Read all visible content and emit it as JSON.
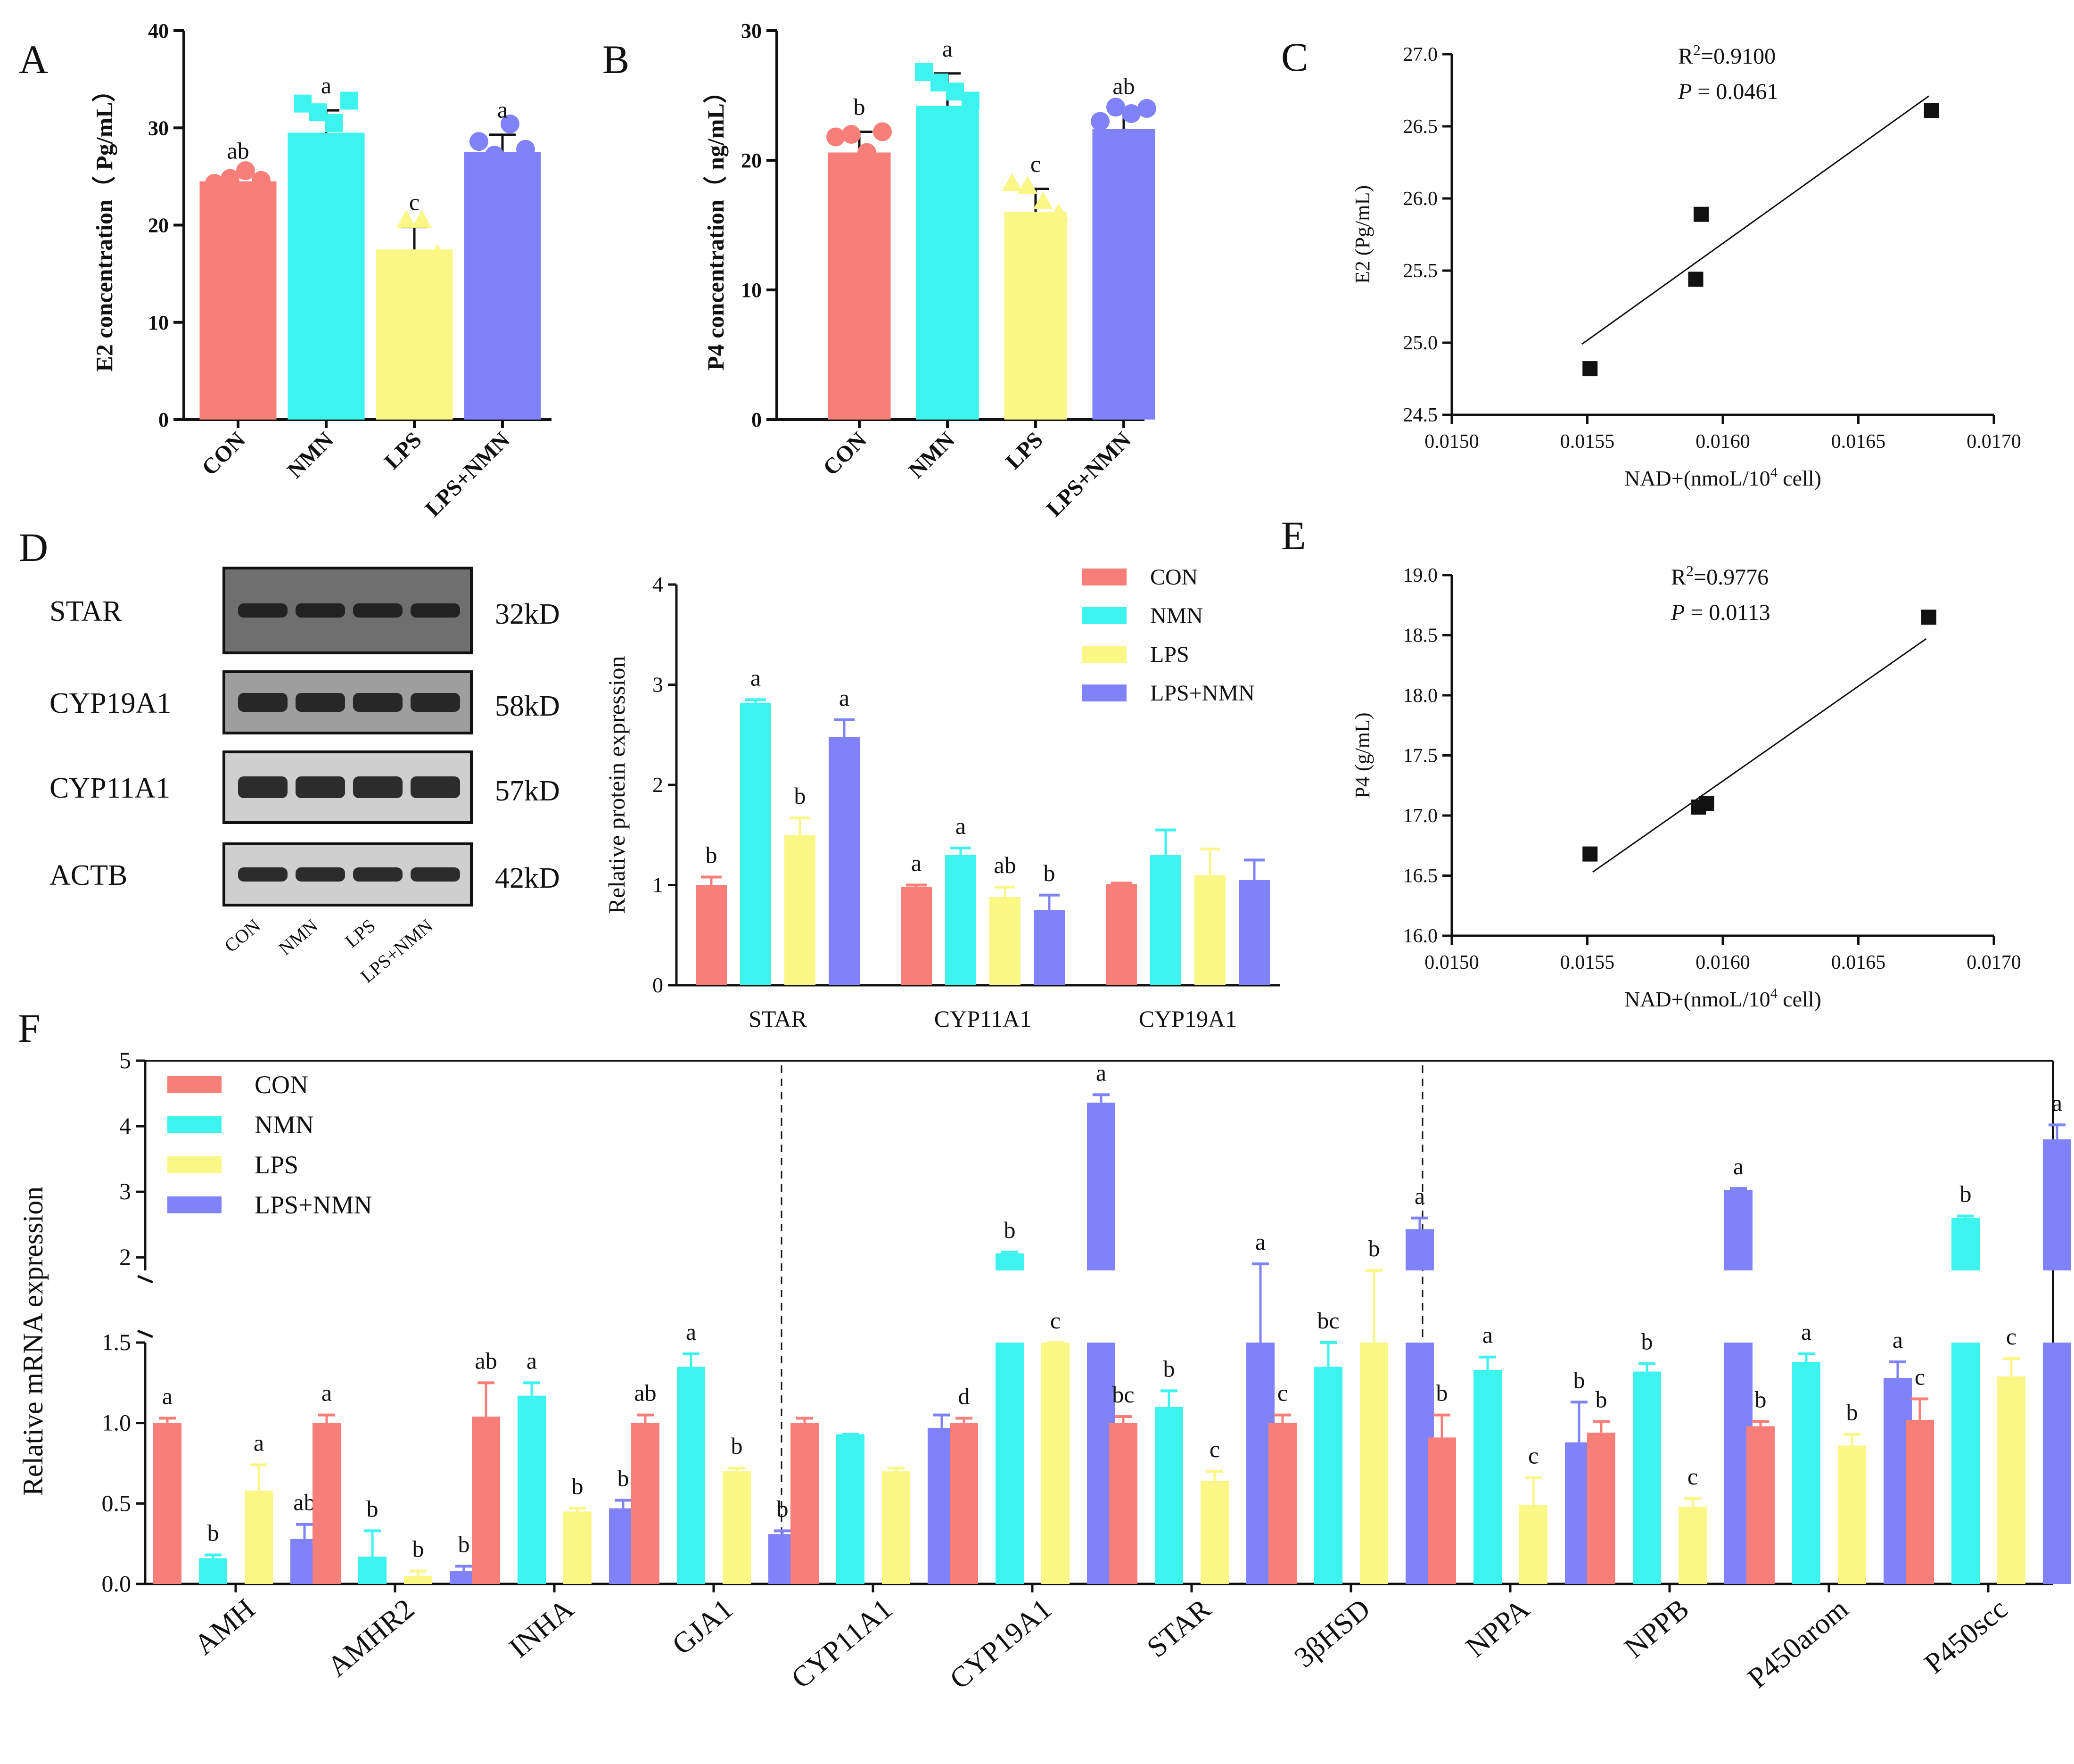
{
  "colors": {
    "CON": "#f87e79",
    "NMN": "#3df3ee",
    "LPS": "#faf786",
    "LPS+NMN": "#7f82f9",
    "blot_bg": "#8c8c8c",
    "band": "#1a1a1a"
  },
  "chart_data": [
    {
      "id": "A",
      "panel_label": "A",
      "type": "bar",
      "title": "",
      "ylabel": "E2 concentration（ Pg/mL）",
      "ylim": [
        0,
        40
      ],
      "yticks": [
        "0",
        "10",
        "20",
        "30",
        "40"
      ],
      "categories": [
        "CON",
        "NMN",
        "LPS",
        "LPS+NMN"
      ],
      "values": [
        24.5,
        29.5,
        17.5,
        27.5
      ],
      "errors": [
        0.6,
        2.3,
        2.3,
        1.8
      ],
      "letters": [
        "ab",
        "a",
        "c",
        "a"
      ],
      "points": [
        [
          24.3,
          24.8,
          25.6,
          24.6
        ],
        [
          32.5,
          31.6,
          30.5,
          32.8
        ],
        [
          16.5,
          20.5,
          20.5,
          17.0
        ],
        [
          28.6,
          27.2,
          30.4,
          27.8
        ]
      ]
    },
    {
      "id": "B",
      "panel_label": "B",
      "type": "bar",
      "title": "",
      "ylabel": "P4 concentration（ ng/mL）",
      "ylim": [
        0,
        30
      ],
      "yticks": [
        "0",
        "10",
        "20",
        "30"
      ],
      "categories": [
        "CON",
        "NMN",
        "LPS",
        "LPS+NMN"
      ],
      "values": [
        20.6,
        24.2,
        16.0,
        22.4
      ],
      "errors": [
        1.6,
        2.5,
        1.8,
        1.4
      ],
      "letters": [
        "b",
        "a",
        "c",
        "ab"
      ],
      "points": [
        [
          21.8,
          22.0,
          20.6,
          22.2
        ],
        [
          26.8,
          26.0,
          25.3,
          24.6
        ],
        [
          18.2,
          18.0,
          16.8,
          15.9
        ],
        [
          23.0,
          24.1,
          23.6,
          24.0
        ]
      ]
    },
    {
      "id": "C",
      "panel_label": "C",
      "type": "scatter",
      "xlabel": "NAD+(nmoL/10",
      "xlabel_sup": "4",
      "xlabel_tail": " cell)",
      "ylabel": "E2 (Pg/mL)",
      "xlim": [
        0.015,
        0.017
      ],
      "ylim": [
        24.5,
        27.0
      ],
      "xticks": [
        "0.0150",
        "0.0155",
        "0.0160",
        "0.0165",
        "0.0170"
      ],
      "yticks": [
        "24.5",
        "25.0",
        "25.5",
        "26.0",
        "26.5",
        "27.0"
      ],
      "x": [
        0.01551,
        0.0159,
        0.01592,
        0.01677
      ],
      "y": [
        24.82,
        25.44,
        25.89,
        26.61
      ],
      "fit": [
        [
          0.01548,
          24.99
        ],
        [
          0.01676,
          26.71
        ]
      ],
      "r2_label": "R",
      "r2_sup": "2",
      "r2_value": "=0.9100",
      "p_label": "P",
      "p_value": " = 0.0461"
    },
    {
      "id": "E",
      "panel_label": "E",
      "type": "scatter",
      "xlabel": "NAD+(nmoL/10",
      "xlabel_sup": "4",
      "xlabel_tail": " cell)",
      "ylabel": "P4 (g/mL)",
      "xlim": [
        0.015,
        0.017
      ],
      "ylim": [
        16.0,
        19.0
      ],
      "xticks": [
        "0.0150",
        "0.0155",
        "0.0160",
        "0.0165",
        "0.0170"
      ],
      "yticks": [
        "16.0",
        "16.5",
        "17.0",
        "17.5",
        "18.0",
        "18.5",
        "19.0"
      ],
      "x": [
        0.01551,
        0.01591,
        0.01594,
        0.01676
      ],
      "y": [
        16.68,
        17.07,
        17.1,
        18.65
      ],
      "fit": [
        [
          0.01552,
          16.53
        ],
        [
          0.01675,
          18.47
        ]
      ],
      "r2_label": "R",
      "r2_sup": "2",
      "r2_value": "=0.9776",
      "p_label": "P",
      "p_value": " = 0.0113"
    },
    {
      "id": "D",
      "panel_label": "D",
      "type": "bar",
      "ylabel": "Relative protein expression",
      "ylim": [
        0,
        4
      ],
      "yticks": [
        "0",
        "1",
        "2",
        "3",
        "4"
      ],
      "categories": [
        "STAR",
        "CYP11A1",
        "CYP19A1"
      ],
      "legend": [
        "CON",
        "NMN",
        "LPS",
        "LPS+NMN"
      ],
      "series": [
        {
          "name": "CON",
          "values": [
            1.0,
            0.98,
            1.01
          ],
          "errors": [
            0.08,
            0.02,
            0.01
          ],
          "letters": [
            "b",
            "a",
            ""
          ]
        },
        {
          "name": "NMN",
          "values": [
            2.82,
            1.3,
            1.3
          ],
          "errors": [
            0.03,
            0.07,
            0.25
          ],
          "letters": [
            "a",
            "a",
            ""
          ]
        },
        {
          "name": "LPS",
          "values": [
            1.5,
            0.88,
            1.1
          ],
          "errors": [
            0.17,
            0.1,
            0.26
          ],
          "letters": [
            "b",
            "ab",
            ""
          ]
        },
        {
          "name": "LPS+NMN",
          "values": [
            2.48,
            0.75,
            1.05
          ],
          "errors": [
            0.17,
            0.15,
            0.2
          ],
          "letters": [
            "a",
            "b",
            ""
          ]
        }
      ],
      "blot": {
        "rows": [
          {
            "protein": "STAR",
            "size": "32kD"
          },
          {
            "protein": "CYP19A1",
            "size": "58kD"
          },
          {
            "protein": "CYP11A1",
            "size": "57kD"
          },
          {
            "protein": "ACTB",
            "size": "42kD"
          }
        ],
        "lanes": [
          "CON",
          "NMN",
          "LPS",
          "LPS+NMN"
        ]
      }
    },
    {
      "id": "F",
      "panel_label": "F",
      "type": "bar",
      "ylabel": "Relative mRNA expression",
      "ylim": [
        0,
        5
      ],
      "axis_break": [
        1.5,
        1.8
      ],
      "yticks_low": [
        "0.0",
        "0.5",
        "1.0",
        "1.5"
      ],
      "yticks_high": [
        "2",
        "3",
        "4",
        "5"
      ],
      "categories": [
        "AMH",
        "AMHR2",
        "INHA",
        "GJA1",
        "CYP11A1",
        "CYP19A1",
        "STAR",
        "3βHSD",
        "NPPA",
        "NPPB",
        "P450arom",
        "P450scc"
      ],
      "legend": [
        "CON",
        "NMN",
        "LPS",
        "LPS+NMN"
      ],
      "series": [
        {
          "name": "CON",
          "values": [
            1.0,
            1.0,
            1.04,
            1.0,
            1.0,
            1.0,
            1.0,
            1.0,
            0.91,
            0.94,
            0.98,
            1.02
          ],
          "errors": [
            0.03,
            0.05,
            0.21,
            0.05,
            0.03,
            0.03,
            0.04,
            0.05,
            0.14,
            0.07,
            0.03,
            0.13
          ],
          "letters": [
            "a",
            "a",
            "ab",
            "ab",
            "",
            "d",
            "bc",
            "c",
            "b",
            "b",
            "b",
            "c"
          ]
        },
        {
          "name": "NMN",
          "values": [
            0.16,
            0.17,
            1.17,
            1.35,
            0.93,
            2.06,
            1.1,
            1.35,
            1.33,
            1.32,
            1.38,
            2.6
          ],
          "errors": [
            0.02,
            0.16,
            0.08,
            0.08,
            0.0,
            0.02,
            0.1,
            0.2,
            0.08,
            0.05,
            0.05,
            0.03
          ],
          "letters": [
            "b",
            "b",
            "a",
            "a",
            "",
            "b",
            "b",
            "bc",
            "a",
            "b",
            "a",
            "b"
          ]
        },
        {
          "name": "LPS",
          "values": [
            0.58,
            0.05,
            0.45,
            0.7,
            0.7,
            1.6,
            0.64,
            1.6,
            0.49,
            0.48,
            0.86,
            1.29
          ],
          "errors": [
            0.16,
            0.03,
            0.02,
            0.02,
            0.02,
            0.05,
            0.06,
            0.2,
            0.17,
            0.05,
            0.07,
            0.11
          ],
          "letters": [
            "a",
            "b",
            "b",
            "b",
            "",
            "c",
            "c",
            "b",
            "c",
            "c",
            "b",
            "c"
          ]
        },
        {
          "name": "LPS+NMN",
          "values": [
            0.28,
            0.08,
            0.47,
            0.31,
            0.97,
            4.36,
            1.68,
            2.43,
            0.88,
            3.03,
            1.28,
            3.8
          ],
          "errors": [
            0.09,
            0.03,
            0.05,
            0.02,
            0.08,
            0.12,
            0.22,
            0.17,
            0.25,
            0.02,
            0.1,
            0.22
          ],
          "letters": [
            "ab",
            "b",
            "b",
            "b",
            "",
            "a",
            "a",
            "a",
            "b",
            "a",
            "a",
            "a"
          ]
        }
      ]
    }
  ]
}
